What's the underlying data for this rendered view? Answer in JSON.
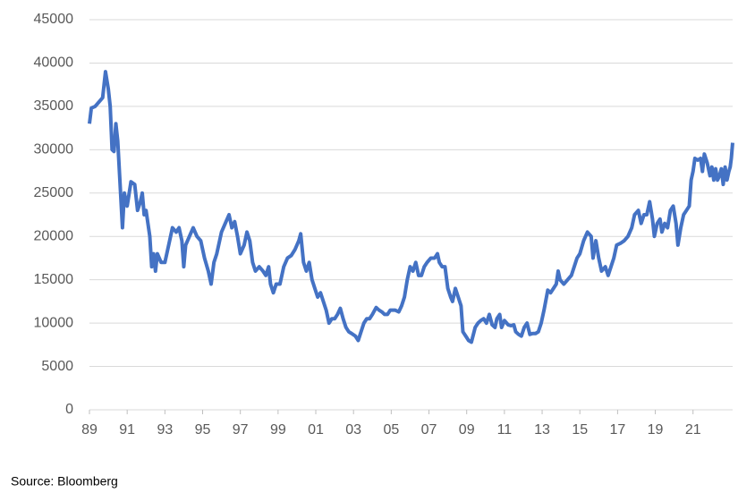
{
  "chart_data": {
    "type": "line",
    "source": "Source: Bloomberg",
    "x": [
      1989.0,
      1989.1,
      1989.3,
      1989.5,
      1989.7,
      1989.85,
      1990.0,
      1990.1,
      1990.2,
      1990.3,
      1990.4,
      1990.5,
      1990.65,
      1990.75,
      1990.85,
      1991.0,
      1991.2,
      1991.4,
      1991.55,
      1991.7,
      1991.8,
      1991.9,
      1992.0,
      1992.2,
      1992.3,
      1992.4,
      1992.5,
      1992.6,
      1992.8,
      1993.0,
      1993.2,
      1993.4,
      1993.6,
      1993.75,
      1993.9,
      1994.0,
      1994.1,
      1994.3,
      1994.5,
      1994.7,
      1994.9,
      1995.1,
      1995.3,
      1995.45,
      1995.6,
      1995.75,
      1995.9,
      1996.0,
      1996.2,
      1996.4,
      1996.55,
      1996.7,
      1996.85,
      1997.0,
      1997.2,
      1997.35,
      1997.5,
      1997.65,
      1997.8,
      1998.0,
      1998.2,
      1998.35,
      1998.5,
      1998.6,
      1998.75,
      1998.9,
      1999.1,
      1999.3,
      1999.5,
      1999.7,
      1999.9,
      2000.1,
      2000.2,
      2000.35,
      2000.5,
      2000.65,
      2000.8,
      2000.95,
      2001.1,
      2001.25,
      2001.4,
      2001.55,
      2001.7,
      2001.85,
      2002.0,
      2002.15,
      2002.3,
      2002.45,
      2002.6,
      2002.75,
      2002.9,
      2003.1,
      2003.25,
      2003.4,
      2003.55,
      2003.7,
      2003.85,
      2004.0,
      2004.2,
      2004.35,
      2004.5,
      2004.65,
      2004.8,
      2004.95,
      2005.2,
      2005.4,
      2005.55,
      2005.7,
      2005.85,
      2006.0,
      2006.15,
      2006.3,
      2006.45,
      2006.6,
      2006.75,
      2006.9,
      2007.1,
      2007.3,
      2007.45,
      2007.55,
      2007.7,
      2007.85,
      2008.0,
      2008.15,
      2008.25,
      2008.4,
      2008.55,
      2008.7,
      2008.8,
      2008.95,
      2009.1,
      2009.25,
      2009.45,
      2009.6,
      2009.75,
      2009.9,
      2010.05,
      2010.2,
      2010.35,
      2010.5,
      2010.6,
      2010.75,
      2010.85,
      2011.0,
      2011.2,
      2011.35,
      2011.5,
      2011.6,
      2011.75,
      2011.9,
      2012.05,
      2012.2,
      2012.35,
      2012.5,
      2012.65,
      2012.8,
      2012.95,
      2013.1,
      2013.3,
      2013.45,
      2013.6,
      2013.75,
      2013.85,
      2013.95,
      2014.15,
      2014.35,
      2014.55,
      2014.7,
      2014.85,
      2015.0,
      2015.2,
      2015.4,
      2015.6,
      2015.7,
      2015.85,
      2016.0,
      2016.15,
      2016.35,
      2016.5,
      2016.65,
      2016.8,
      2016.95,
      2017.15,
      2017.35,
      2017.55,
      2017.75,
      2017.9,
      2018.1,
      2018.25,
      2018.4,
      2018.55,
      2018.7,
      2018.85,
      2018.95,
      2019.1,
      2019.25,
      2019.35,
      2019.5,
      2019.65,
      2019.8,
      2019.95,
      2020.1,
      2020.2,
      2020.35,
      2020.5,
      2020.65,
      2020.8,
      2020.9,
      2021.0,
      2021.1,
      2021.25,
      2021.4,
      2021.5,
      2021.6,
      2021.75,
      2021.9,
      2022.0,
      2022.1,
      2022.2,
      2022.3,
      2022.4,
      2022.5,
      2022.6,
      2022.7,
      2022.8,
      2022.9,
      2022.97,
      2023.03,
      2023.1
    ],
    "series": [
      {
        "color": "#4472c4",
        "values": [
          33000,
          34800,
          35000,
          35500,
          36000,
          39000,
          37000,
          35000,
          30000,
          29800,
          33000,
          31000,
          25000,
          21000,
          25000,
          23500,
          26300,
          26000,
          23000,
          24000,
          25000,
          22500,
          23000,
          20000,
          16500,
          18000,
          16000,
          18000,
          17000,
          17000,
          19000,
          21000,
          20500,
          21000,
          19500,
          16500,
          19000,
          20000,
          21000,
          20000,
          19500,
          17500,
          16000,
          14500,
          17000,
          18000,
          19500,
          20500,
          21500,
          22500,
          21000,
          21700,
          20000,
          18000,
          19000,
          20500,
          19500,
          17000,
          16000,
          16500,
          16000,
          15500,
          16500,
          14500,
          13500,
          14500,
          14500,
          16500,
          17500,
          17800,
          18500,
          19500,
          20300,
          17000,
          16000,
          17000,
          15000,
          14000,
          13000,
          13500,
          12500,
          11500,
          10000,
          10500,
          10500,
          11000,
          11700,
          10500,
          9500,
          9000,
          8800,
          8500,
          8000,
          9000,
          10000,
          10500,
          10500,
          11000,
          11800,
          11500,
          11300,
          11000,
          11000,
          11500,
          11500,
          11300,
          12000,
          13000,
          15000,
          16500,
          16000,
          17000,
          15500,
          15500,
          16500,
          17000,
          17500,
          17500,
          18000,
          17000,
          16500,
          16500,
          14000,
          13000,
          12500,
          14000,
          13000,
          12000,
          9000,
          8500,
          8000,
          7800,
          9500,
          10000,
          10300,
          10500,
          10000,
          11000,
          9800,
          9500,
          10500,
          11000,
          9500,
          10300,
          9800,
          9700,
          9800,
          9000,
          8700,
          8500,
          9500,
          10000,
          8700,
          8800,
          8800,
          9000,
          10000,
          11500,
          13800,
          13500,
          14000,
          14500,
          16000,
          15000,
          14500,
          15000,
          15500,
          16500,
          17500,
          18000,
          19500,
          20500,
          20000,
          17500,
          19500,
          17500,
          16000,
          16500,
          15500,
          16500,
          17500,
          19000,
          19200,
          19500,
          20000,
          21000,
          22500,
          23000,
          21500,
          22500,
          22500,
          24000,
          22000,
          20000,
          21500,
          22000,
          20500,
          21500,
          21000,
          23000,
          23500,
          21500,
          19000,
          21000,
          22500,
          23000,
          23500,
          26500,
          27500,
          29000,
          28800,
          29000,
          27500,
          29500,
          28500,
          27000,
          28000,
          26500,
          27800,
          26500,
          27000,
          27800,
          26000,
          28000,
          26500,
          27500,
          28000,
          29000,
          30800
        ]
      }
    ],
    "xlim": [
      1989,
      2023.1
    ],
    "xticks": [
      {
        "value": 1989,
        "label": "89"
      },
      {
        "value": 1991,
        "label": "91"
      },
      {
        "value": 1993,
        "label": "93"
      },
      {
        "value": 1995,
        "label": "95"
      },
      {
        "value": 1997,
        "label": "97"
      },
      {
        "value": 1999,
        "label": "99"
      },
      {
        "value": 2001,
        "label": "01"
      },
      {
        "value": 2003,
        "label": "03"
      },
      {
        "value": 2005,
        "label": "05"
      },
      {
        "value": 2007,
        "label": "07"
      },
      {
        "value": 2009,
        "label": "09"
      },
      {
        "value": 2011,
        "label": "11"
      },
      {
        "value": 2013,
        "label": "13"
      },
      {
        "value": 2015,
        "label": "15"
      },
      {
        "value": 2017,
        "label": "17"
      },
      {
        "value": 2019,
        "label": "19"
      },
      {
        "value": 2021,
        "label": "21"
      }
    ],
    "ylim": [
      0,
      45000
    ],
    "yticks": [
      0,
      5000,
      10000,
      15000,
      20000,
      25000,
      30000,
      35000,
      40000,
      45000
    ],
    "grid": true
  }
}
